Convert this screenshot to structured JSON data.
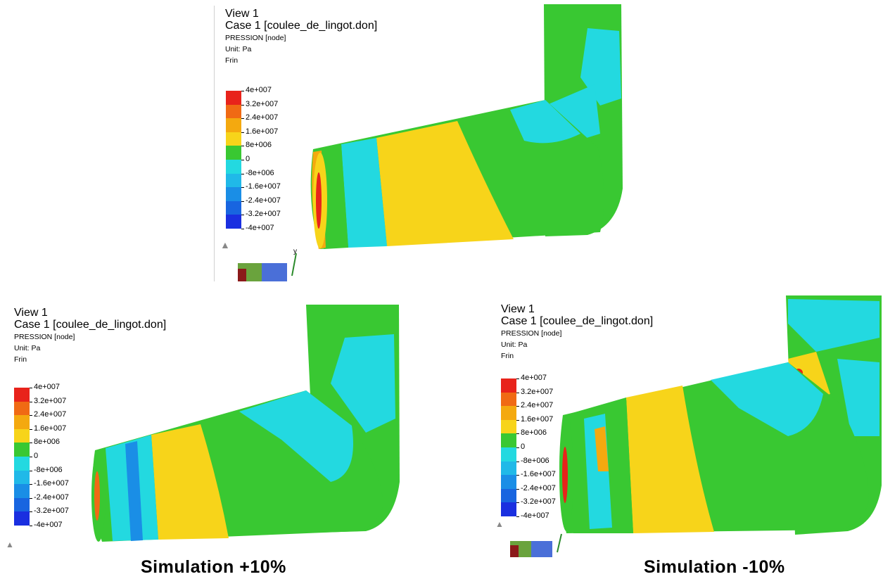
{
  "panels": [
    {
      "id": "top",
      "view_label": "View 1",
      "case_label": "Case 1  [coulee_de_lingot.don]",
      "field_label": "PRESSION [node]",
      "unit_label": "Unit: Pa",
      "frin_label": "Frin"
    },
    {
      "id": "bottom-left",
      "view_label": "View 1",
      "case_label": "Case 1  [coulee_de_lingot.don]",
      "field_label": "PRESSION [node]",
      "unit_label": "Unit: Pa",
      "frin_label": "Frin",
      "caption": "Simulation +10%"
    },
    {
      "id": "bottom-right",
      "view_label": "View 1",
      "case_label": "Case 1  [coulee_de_lingot.don]",
      "field_label": "PRESSION [node]",
      "unit_label": "Unit: Pa",
      "frin_label": "Frin",
      "caption": "Simulation -10%"
    }
  ],
  "legend": {
    "labels": [
      "4e+007",
      "3.2e+007",
      "2.4e+007",
      "1.6e+007",
      "8e+006",
      "0",
      "-8e+006",
      "-1.6e+007",
      "-2.4e+007",
      "-3.2e+007",
      "-4e+007"
    ],
    "colors": [
      "#e8231b",
      "#f06a14",
      "#f4a90f",
      "#f7d41a",
      "#39c832",
      "#23d9e0",
      "#20b9e8",
      "#1a8ee6",
      "#1865e0",
      "#1a2fe0"
    ]
  },
  "axis": {
    "y_label": "y"
  }
}
